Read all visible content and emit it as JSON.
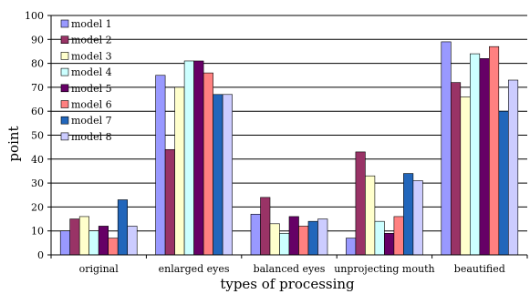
{
  "chart_data": {
    "type": "bar",
    "title": "",
    "xlabel": "types of processing",
    "ylabel": "point",
    "ylim": [
      0,
      100
    ],
    "ytick_step": 10,
    "grid": true,
    "legend_position": "top-left",
    "categories": [
      "original",
      "enlarged eyes",
      "balanced eyes",
      "unprojecting mouth",
      "beautified"
    ],
    "series": [
      {
        "name": "model 1",
        "color": "#9999ff",
        "values": [
          10,
          75,
          17,
          7,
          89
        ]
      },
      {
        "name": "model 2",
        "color": "#993366",
        "values": [
          15,
          44,
          24,
          43,
          72
        ]
      },
      {
        "name": "model 3",
        "color": "#ffffcc",
        "values": [
          16,
          70,
          13,
          33,
          66
        ]
      },
      {
        "name": "model 4",
        "color": "#ccffff",
        "values": [
          10,
          81,
          9,
          14,
          84
        ]
      },
      {
        "name": "model 5",
        "color": "#660066",
        "values": [
          12,
          81,
          16,
          9,
          82
        ]
      },
      {
        "name": "model 6",
        "color": "#ff8080",
        "values": [
          7,
          76,
          12,
          16,
          87
        ]
      },
      {
        "name": "model 7",
        "color": "#2266bb",
        "values": [
          23,
          67,
          14,
          34,
          60
        ]
      },
      {
        "name": "model 8",
        "color": "#ccccff",
        "values": [
          12,
          67,
          15,
          31,
          73
        ]
      }
    ]
  }
}
